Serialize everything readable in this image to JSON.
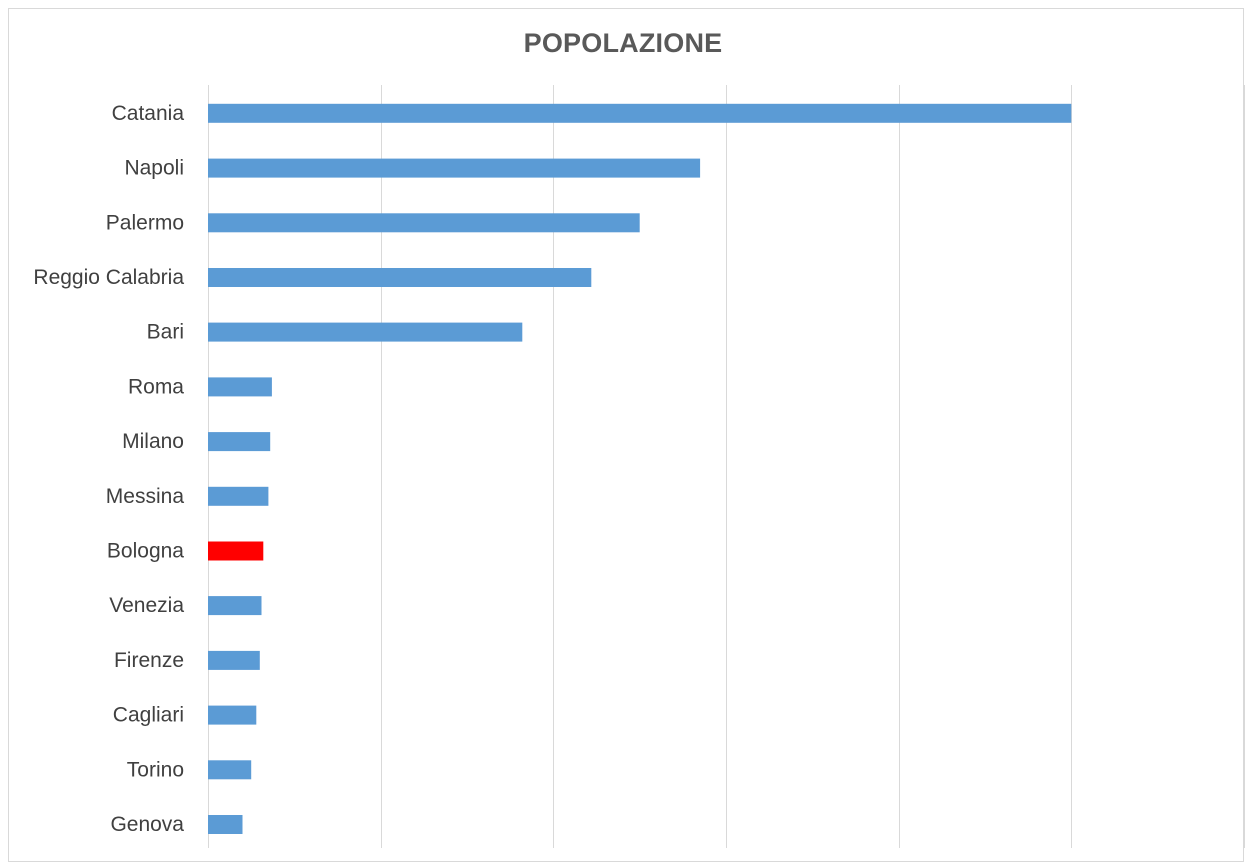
{
  "chart_data": {
    "type": "bar",
    "orientation": "horizontal",
    "title": "POPOLAZIONE",
    "xlabel": "",
    "ylabel": "",
    "categories": [
      "Catania",
      "Napoli",
      "Palermo",
      "Reggio Calabria",
      "Bari",
      "Roma",
      "Milano",
      "Messina",
      "Bologna",
      "Venezia",
      "Firenze",
      "Cagliari",
      "Torino",
      "Genova"
    ],
    "values": [
      500,
      285,
      250,
      222,
      182,
      37,
      36,
      35,
      32,
      31,
      30,
      28,
      25,
      20
    ],
    "xlim": [
      0,
      600
    ],
    "x_gridline_step": 100,
    "x_tick_labels_shown": false,
    "grid": true,
    "legend": "none",
    "colors": {
      "default_bar": "#5b9bd5",
      "highlight_bar": "#ff0000",
      "gridline": "#d9d9d9",
      "label_text": "#404040",
      "title_text": "#595959"
    },
    "highlight_category": "Bologna"
  }
}
